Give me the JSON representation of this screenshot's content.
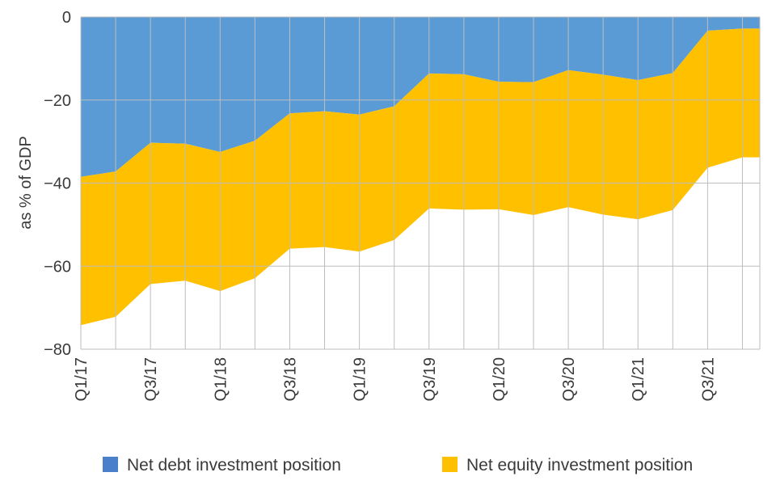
{
  "chart_data": {
    "type": "area",
    "stacked": true,
    "x": [
      "Q1/17",
      "Q2/17",
      "Q3/17",
      "Q4/17",
      "Q1/18",
      "Q2/18",
      "Q3/18",
      "Q4/18",
      "Q1/19",
      "Q2/19",
      "Q3/19",
      "Q4/19",
      "Q1/20",
      "Q2/20",
      "Q3/20",
      "Q4/20",
      "Q1/21",
      "Q2/21",
      "Q3/21",
      "Q4/21"
    ],
    "x_tick_labels": [
      "Q1/17",
      "Q3/17",
      "Q1/18",
      "Q3/18",
      "Q1/19",
      "Q3/19",
      "Q1/20",
      "Q3/20",
      "Q1/21",
      "Q3/21"
    ],
    "ylabel": "as % of GDP",
    "ylim": [
      -80,
      0
    ],
    "yticks": [
      0,
      -20,
      -40,
      -60,
      -80
    ],
    "ytick_labels": [
      "0",
      "−20",
      "−40",
      "−60",
      "−80"
    ],
    "grid": "both",
    "legend_position": "bottom",
    "series": [
      {
        "name": "Net debt investment position",
        "color": "#5a9bd5",
        "values": [
          -38.5,
          -37.2,
          -30.3,
          -30.5,
          -32.5,
          -29.8,
          -23.2,
          -22.7,
          -23.5,
          -21.5,
          -13.6,
          -13.8,
          -15.6,
          -15.7,
          -12.8,
          -13.9,
          -15.2,
          -13.5,
          -3.3,
          -2.8
        ]
      },
      {
        "name": "Net equity investment position",
        "color": "#ffc000",
        "values": [
          -35.7,
          -35.0,
          -34.0,
          -33.0,
          -33.5,
          -33.1,
          -32.6,
          -32.7,
          -33.0,
          -32.2,
          -32.5,
          -32.6,
          -30.7,
          -32.0,
          -33.0,
          -33.7,
          -33.5,
          -33.0,
          -33.0,
          -31.0
        ]
      }
    ]
  }
}
